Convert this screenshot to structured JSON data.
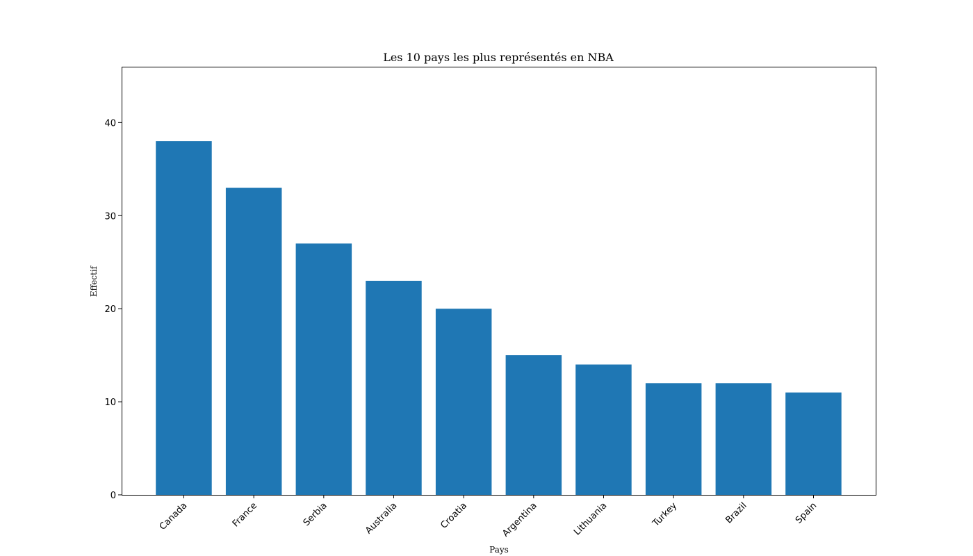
{
  "chart_data": {
    "type": "bar",
    "title": "Les 10 pays les plus représentés en NBA",
    "xlabel": "Pays",
    "ylabel": "Effectif",
    "categories": [
      "Canada",
      "France",
      "Serbia",
      "Australia",
      "Croatia",
      "Argentina",
      "Lithuania",
      "Turkey",
      "Brazil",
      "Spain"
    ],
    "values": [
      38,
      33,
      27,
      23,
      20,
      15,
      14,
      12,
      12,
      11
    ],
    "ylim": [
      0,
      46
    ],
    "yticks": [
      0,
      10,
      20,
      30,
      40
    ],
    "bar_color": "#1f77b4",
    "grid": false,
    "legend": "none"
  }
}
